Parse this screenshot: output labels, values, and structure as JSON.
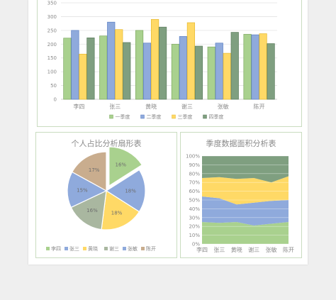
{
  "colors": {
    "green": "#a9d18e",
    "blue": "#8faadc",
    "yellow": "#ffd966",
    "gray_green": "#a9b7a0",
    "dark_green": "#7f9f80",
    "tan": "#c9ad8e",
    "green_stroke": "#7ea862",
    "blue_stroke": "#5b7fc4",
    "yellow_stroke": "#e5b930",
    "dark_stroke": "#5c7c5d"
  },
  "chart_data": [
    {
      "type": "bar",
      "title": "",
      "categories": [
        "李四",
        "张三",
        "黄晓",
        "谢三",
        "张敏",
        "陈开"
      ],
      "series": [
        {
          "name": "一季度",
          "color": "green",
          "values": [
            222,
            230,
            250,
            200,
            190,
            236
          ]
        },
        {
          "name": "二季度",
          "color": "blue",
          "values": [
            250,
            280,
            204,
            228,
            204,
            234
          ]
        },
        {
          "name": "三季度",
          "color": "yellow",
          "values": [
            164,
            253,
            290,
            278,
            167,
            238
          ]
        },
        {
          "name": "四季度",
          "color": "dark_green",
          "values": [
            223,
            206,
            262,
            193,
            243,
            202
          ]
        }
      ],
      "ylim": [
        0,
        350
      ],
      "yticks": [
        "0",
        "50",
        "100",
        "150",
        "200",
        "250",
        "300",
        "350"
      ],
      "grid": true,
      "legend": "bottom"
    },
    {
      "type": "pie",
      "title": "个人占比分析扇形表",
      "slices": [
        {
          "label": "李四",
          "value": 16,
          "text": "16%",
          "color": "green"
        },
        {
          "label": "张三",
          "value": 18,
          "text": "18%",
          "color": "blue"
        },
        {
          "label": "黄晓",
          "value": 18,
          "text": "18%",
          "color": "yellow"
        },
        {
          "label": "谢三",
          "value": 16,
          "text": "16%",
          "color": "gray_green"
        },
        {
          "label": "张敏",
          "value": 15,
          "text": "15%",
          "color": "blue"
        },
        {
          "label": "陈开",
          "value": 17,
          "text": "17%",
          "color": "tan"
        }
      ],
      "legend": "bottom"
    },
    {
      "type": "area",
      "title": "季度数据面积分析表",
      "categories": [
        "李四",
        "张三",
        "黄晓",
        "谢三",
        "张敏",
        "陈开"
      ],
      "stacked_percent": true,
      "series": [
        {
          "name": "一季度",
          "color": "green",
          "values": [
            25,
            24,
            25,
            21,
            23,
            25
          ]
        },
        {
          "name": "二季度",
          "color": "blue",
          "values": [
            29,
            28,
            20,
            26,
            26,
            25
          ]
        },
        {
          "name": "三季度",
          "color": "yellow",
          "values": [
            21,
            24,
            29,
            28,
            21,
            27
          ]
        },
        {
          "name": "四季度",
          "color": "dark_green",
          "values": [
            25,
            24,
            26,
            25,
            30,
            23
          ]
        }
      ],
      "ylim": [
        0,
        100
      ],
      "yticks": [
        "0%",
        "10%",
        "20%",
        "30%",
        "40%",
        "50%",
        "60%",
        "70%",
        "80%",
        "90%",
        "100%"
      ],
      "grid": true
    }
  ]
}
